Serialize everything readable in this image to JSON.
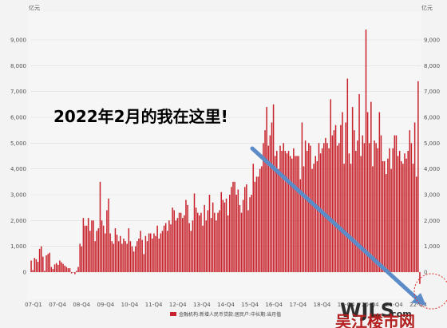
{
  "chart_data": {
    "type": "bar",
    "unit_left": "亿元",
    "unit_right": "亿元",
    "ylim": [
      -500,
      9800
    ],
    "yticks": [
      0,
      1000,
      2000,
      3000,
      4000,
      5000,
      6000,
      7000,
      8000,
      9000
    ],
    "ytick_labels": [
      "0",
      "1,000",
      "2,000",
      "3,000",
      "4,000",
      "5,000",
      "6,000",
      "7,000",
      "8,000",
      "9,000"
    ],
    "xtick_labels": [
      "07-Q1",
      "07-Q4",
      "08-Q4",
      "09-Q4",
      "10-Q4",
      "11-Q4",
      "12-Q4",
      "13-Q4",
      "14-Q4",
      "15-Q4",
      "16-Q4",
      "17-Q4",
      "18-Q4",
      "19-Q4",
      "20-Q4",
      "21-Q4",
      "22-Q4"
    ],
    "annotation": "2022年2月的我在这里!",
    "legend": "金融机构:新增人民币贷款:居民户:中长期:当月值",
    "bar_color": "#c8232c",
    "values": [
      450,
      80,
      550,
      500,
      400,
      900,
      1000,
      600,
      50,
      650,
      700,
      750,
      200,
      120,
      300,
      350,
      280,
      450,
      380,
      320,
      250,
      200,
      150,
      150,
      -50,
      0,
      -80,
      50,
      200,
      1100,
      1000,
      2100,
      1800,
      1800,
      2100,
      1600,
      2000,
      2000,
      1200,
      1600,
      1700,
      3500,
      2000,
      1800,
      1500,
      2400,
      2850,
      1500,
      1200,
      1100,
      1700,
      1450,
      1200,
      1400,
      1100,
      1300,
      1200,
      1100,
      1700,
      1200,
      1000,
      800,
      1000,
      1200,
      1300,
      1600,
      1250,
      700,
      1400,
      1200,
      1500,
      1500,
      1300,
      1500,
      1400,
      1800,
      1300,
      1500,
      1600,
      1800,
      1900,
      1600,
      2000,
      1850,
      2500,
      2400,
      2000,
      2100,
      2300,
      2300,
      2100,
      2200,
      2800,
      2600,
      1900,
      1600,
      2000,
      3050,
      2500,
      2300,
      2200,
      2300,
      1800,
      2600,
      2000,
      2400,
      3000,
      2100,
      2700,
      2300,
      2000,
      2300,
      2400,
      3100,
      2800,
      2700,
      2850,
      2200,
      3000,
      3300,
      3500,
      3500,
      3000,
      3200,
      2600,
      2300,
      2800,
      3300,
      3400,
      2400,
      2900,
      3000,
      4200,
      3500,
      3700,
      3700,
      4000,
      4100,
      5000,
      5500,
      6400,
      4900,
      5300,
      5800,
      6500,
      4500,
      4700,
      4000,
      4900,
      4700,
      5000,
      4700,
      4600,
      4700,
      4500,
      4400,
      4800,
      4500,
      4500,
      4500,
      3600,
      5800,
      4100,
      5100,
      4700,
      5000,
      4900,
      4000,
      4200,
      4500,
      4300,
      5000,
      4600,
      4800,
      5000,
      5200,
      5000,
      4800,
      6700,
      5300,
      5500,
      5700,
      4900,
      5000,
      5700,
      6200,
      4200,
      5800,
      7500,
      4600,
      4200,
      6400,
      5500,
      4700,
      5100,
      6900,
      4500,
      5300,
      5000,
      9400,
      6200,
      5000,
      6600,
      4100,
      5100,
      5000,
      4800,
      6200,
      5300,
      4300,
      4300,
      3800,
      4400,
      4800,
      4000,
      4800,
      5300,
      5300,
      4500,
      4700,
      4300,
      4200,
      4600,
      4400,
      4700,
      5500,
      5000,
      4200,
      5800,
      3700,
      7400,
      -460
    ]
  },
  "watermark": {
    "latin": "WJLS",
    "com": ".com",
    "cn": "吴江楼市网"
  },
  "colors": {
    "arrow": "#5b8cc8",
    "circle": "#e0302e"
  }
}
